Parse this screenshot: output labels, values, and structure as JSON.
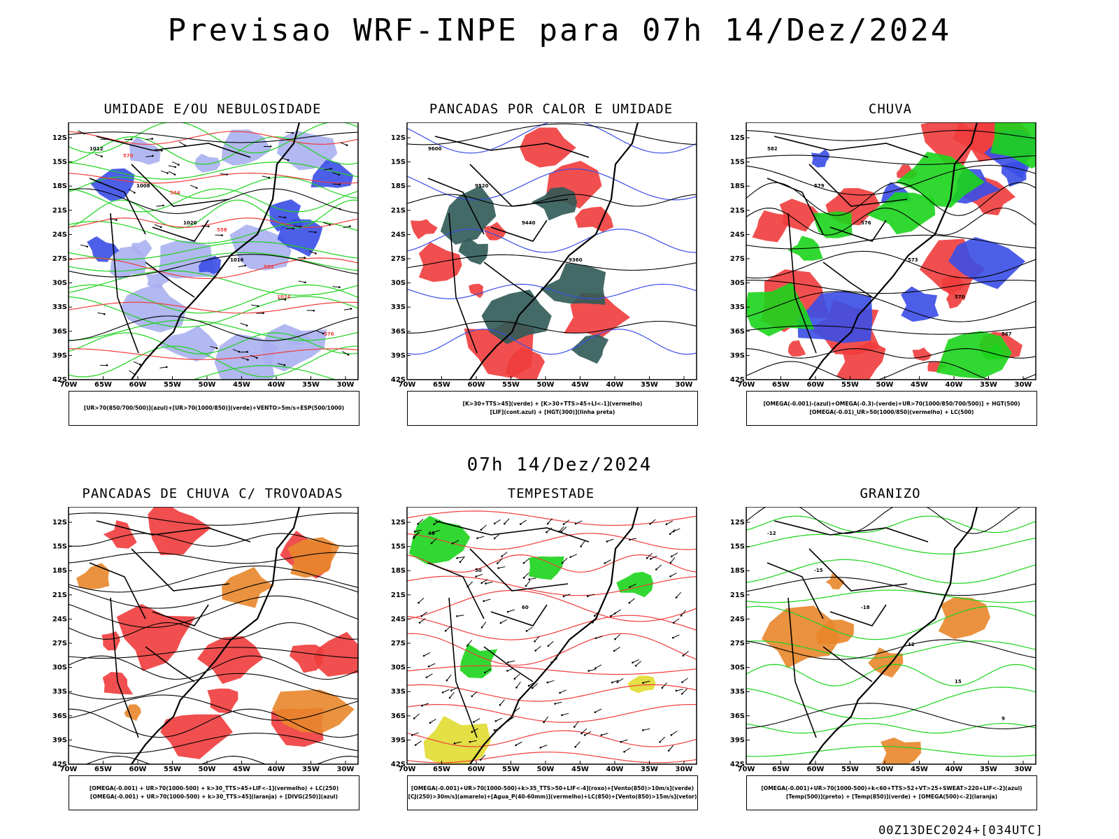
{
  "title": "Previsao WRF-INPE  para 07h 14/Dez/2024",
  "subtitle": "07h 14/Dez/2024",
  "footer": "00Z13DEC2024+[034UTC]",
  "axes": {
    "lat_labels": [
      "12S",
      "15S",
      "18S",
      "21S",
      "24S",
      "27S",
      "30S",
      "33S",
      "36S",
      "39S",
      "42S"
    ],
    "lon_labels": [
      "70W",
      "65W",
      "60W",
      "55W",
      "50W",
      "45W",
      "40W",
      "35W",
      "30W"
    ]
  },
  "colors": {
    "red": "#f03c3c",
    "blue": "#3a4ee6",
    "green": "#1cd41c",
    "lavender": "#aab0f0",
    "teal": "#2f5a56",
    "yellow": "#e0dc30",
    "orange": "#e8862a",
    "black": "#000000"
  },
  "panels": [
    {
      "title": "UMIDADE E/OU NEBULOSIDADE",
      "legend": [
        "[UR>70(850/700/500)](azul)+[UR>70(1000/850)](verde)+VENTO>5m/s+ESP(500/1000)"
      ],
      "contour_labels": [
        "1012",
        "1008",
        "1020",
        "1016",
        "1024",
        "576",
        "570",
        "564",
        "558",
        "552"
      ]
    },
    {
      "title": "PANCADAS POR CALOR E UMIDADE",
      "legend": [
        "[K>30+TTS>45](verde) + [K>30+TTS>45+LI<-1](vermelho)",
        "[LIF](cont.azul) + [HGT(300)](linha preta)"
      ],
      "contour_labels": [
        "9600",
        "9520",
        "9440",
        "9360"
      ]
    },
    {
      "title": "CHUVA",
      "legend": [
        "[OMEGA(-0.001)-(azul)+OMEGA(-0.3)-(verde)+UR>70(1000/850/700/500)] + HGT(500)",
        "[OMEGA(-0.01)_UR>50(1000/850)(vermelho) + LC(500)"
      ],
      "contour_labels": [
        "582",
        "579",
        "576",
        "573",
        "570",
        "567"
      ]
    },
    {
      "title": "PANCADAS DE CHUVA C/ TROVOADAS",
      "legend": [
        "[OMEGA(-0.001) + UR>70(1000-500) + k>30_TTS>45+LIF<-1](vermelho) + LC(250)",
        "[OMEGA(-0.001) + UR>70(1000-500) + k>30_TTS>45](laranja) + [DIVG(250)](azul)"
      ],
      "contour_labels": []
    },
    {
      "title": "TEMPESTADE",
      "legend": [
        "[OMEGA(-0.001)+UR>70(1000-500)+k>35_TTS>50+LIF<-4](roxo)+[Vento(850)>10m/s](verde)",
        "[CJ(250)>30m/s](amarelo)+[Agua_P(40-60mm)](vermelho)+LC(850)+[Vento(850)>15m/s](vetor)"
      ],
      "contour_labels": [
        "40",
        "50",
        "60"
      ]
    },
    {
      "title": "GRANIZO",
      "legend": [
        "[OMEGA(-0.001)+UR>70(1000-500)+k<60+TTS>52+VT>25+SWEAT>220+LIF<-2](azul)",
        "[Temp(500)](preto) + [Temp(850)](verde) + [OMEGA(500)<-2](laranja)"
      ],
      "contour_labels": [
        "-12",
        "-15",
        "-18",
        "12",
        "15",
        "9"
      ]
    }
  ]
}
